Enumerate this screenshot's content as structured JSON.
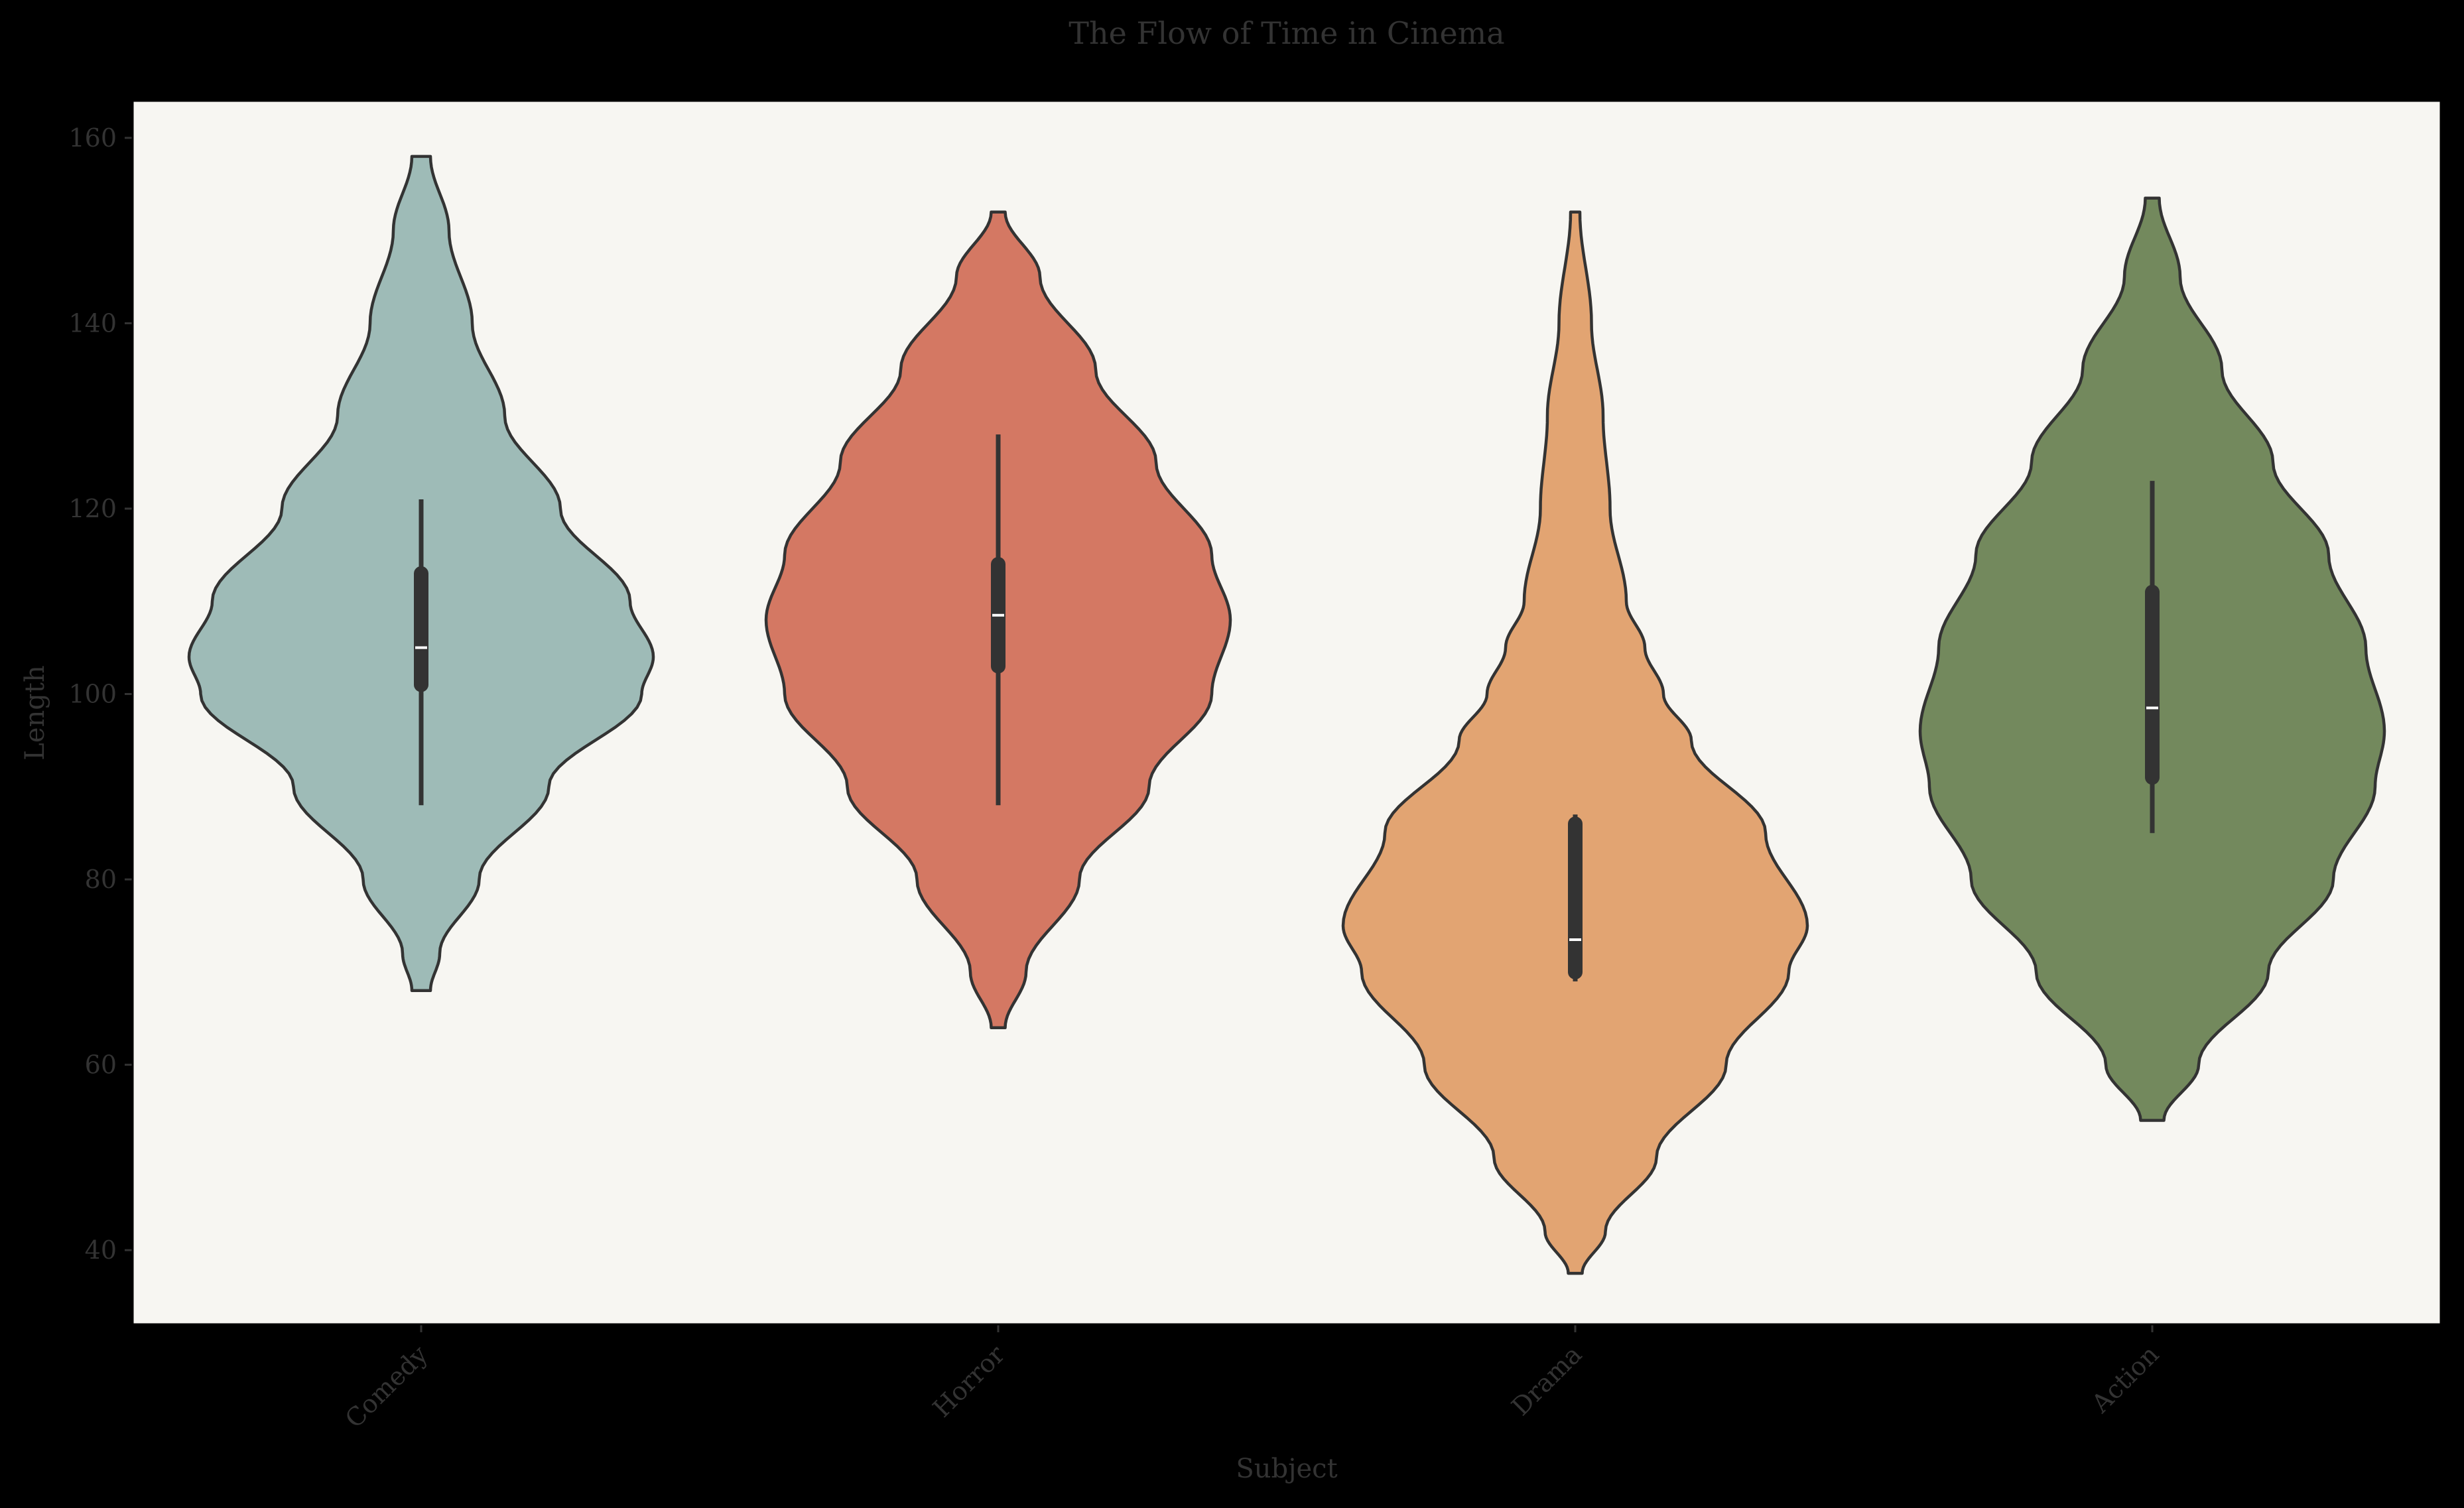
{
  "chart_data": {
    "type": "violin",
    "title": "The Flow of Time in Cinema",
    "xlabel": "Subject",
    "ylabel": "Length",
    "ylim": [
      32,
      164
    ],
    "yticks": [
      40,
      60,
      80,
      100,
      120,
      140,
      160
    ],
    "grid": false,
    "legend": "none",
    "background": "#f7f6f2",
    "outline_color": "#333333",
    "categories": [
      "Comedy",
      "Horror",
      "Drama",
      "Action"
    ],
    "series": [
      {
        "category": "Comedy",
        "color": "#9ebbb7",
        "min": 68,
        "max": 158,
        "q1": 101,
        "median": 105,
        "q3": 113,
        "whisker_low": 88,
        "whisker_high": 121,
        "profile": [
          [
            68,
            0.04
          ],
          [
            72,
            0.08
          ],
          [
            80,
            0.25
          ],
          [
            90,
            0.55
          ],
          [
            100,
            0.95
          ],
          [
            104,
            1.0
          ],
          [
            110,
            0.9
          ],
          [
            120,
            0.6
          ],
          [
            130,
            0.36
          ],
          [
            140,
            0.22
          ],
          [
            150,
            0.12
          ],
          [
            158,
            0.04
          ]
        ]
      },
      {
        "category": "Horror",
        "color": "#d47863",
        "min": 64,
        "max": 152,
        "q1": 103,
        "median": 108.5,
        "q3": 114,
        "whisker_low": 88,
        "whisker_high": 128,
        "profile": [
          [
            64,
            0.03
          ],
          [
            70,
            0.12
          ],
          [
            80,
            0.35
          ],
          [
            90,
            0.65
          ],
          [
            100,
            0.92
          ],
          [
            108,
            1.0
          ],
          [
            115,
            0.92
          ],
          [
            125,
            0.68
          ],
          [
            135,
            0.42
          ],
          [
            145,
            0.18
          ],
          [
            152,
            0.03
          ]
        ]
      },
      {
        "category": "Drama",
        "color": "#e2a472",
        "min": 37.5,
        "max": 152,
        "q1": 70,
        "median": 73.5,
        "q3": 86,
        "whisker_low": 69,
        "whisker_high": 87,
        "profile": [
          [
            37.5,
            0.03
          ],
          [
            42,
            0.13
          ],
          [
            50,
            0.35
          ],
          [
            60,
            0.65
          ],
          [
            70,
            0.92
          ],
          [
            75,
            1.0
          ],
          [
            85,
            0.82
          ],
          [
            95,
            0.5
          ],
          [
            100,
            0.38
          ],
          [
            105,
            0.3
          ],
          [
            110,
            0.22
          ],
          [
            120,
            0.15
          ],
          [
            130,
            0.12
          ],
          [
            140,
            0.07
          ],
          [
            152,
            0.02
          ]
        ]
      },
      {
        "category": "Action",
        "color": "#73895d",
        "min": 54,
        "max": 153.5,
        "q1": 91,
        "median": 98.5,
        "q3": 111,
        "whisker_low": 85,
        "whisker_high": 123,
        "profile": [
          [
            54,
            0.05
          ],
          [
            60,
            0.2
          ],
          [
            70,
            0.5
          ],
          [
            80,
            0.78
          ],
          [
            90,
            0.96
          ],
          [
            96,
            1.0
          ],
          [
            105,
            0.92
          ],
          [
            115,
            0.76
          ],
          [
            125,
            0.52
          ],
          [
            135,
            0.3
          ],
          [
            145,
            0.12
          ],
          [
            153.5,
            0.03
          ]
        ]
      }
    ]
  }
}
